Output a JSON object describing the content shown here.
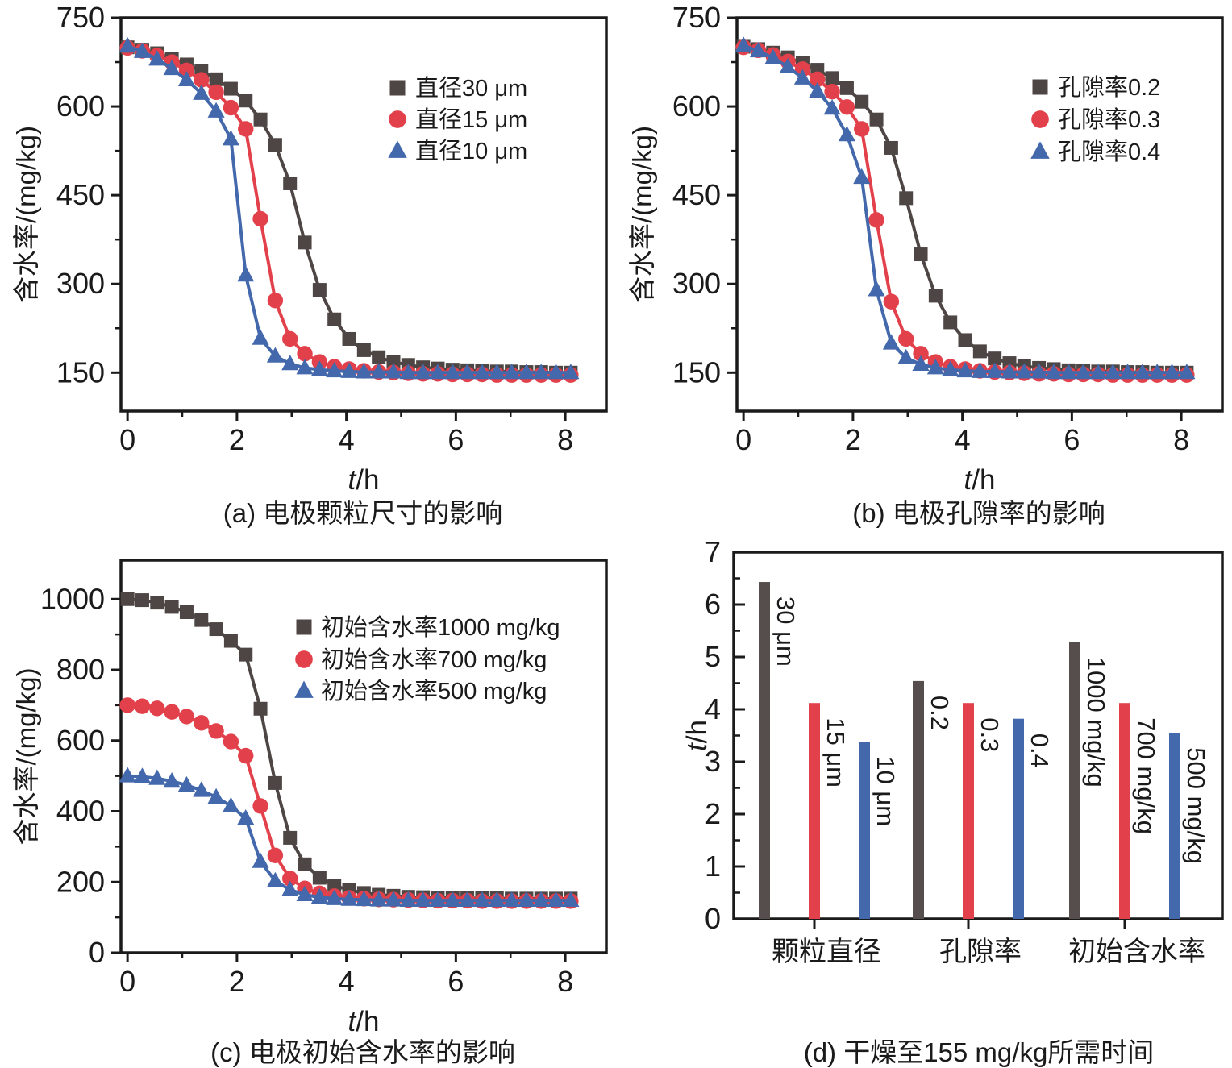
{
  "figure_title": "",
  "colors": {
    "dark": "#4e4644",
    "dark_bar": "#564e4c",
    "red": "#e2414b",
    "blue": "#4368ac",
    "axis": "#1a1a1a"
  },
  "chart_data": [
    {
      "id": "a",
      "type": "line",
      "caption": "(a) 电极颗粒尺寸的影响",
      "xlabel": {
        "italic": "t",
        "rest": "/h"
      },
      "ylabel": "含水率/(mg/kg)",
      "xlim": [
        -0.12,
        8.75
      ],
      "ylim": [
        85,
        750
      ],
      "xticks": [
        0,
        2,
        4,
        6,
        8
      ],
      "xminor": [
        1,
        3,
        5,
        7
      ],
      "yticks": [
        150,
        300,
        450,
        600,
        750
      ],
      "yminor": [
        225,
        375,
        525,
        675
      ],
      "x": [
        0,
        0.27,
        0.54,
        0.81,
        1.08,
        1.35,
        1.62,
        1.89,
        2.16,
        2.43,
        2.7,
        2.97,
        3.24,
        3.51,
        3.78,
        4.05,
        4.32,
        4.59,
        4.86,
        5.13,
        5.4,
        5.67,
        5.94,
        6.21,
        6.48,
        6.75,
        7.02,
        7.29,
        7.56,
        7.83,
        8.1
      ],
      "series": [
        {
          "label": "直径30 μm",
          "marker": "square",
          "color": "#4e4644",
          "y": [
            700,
            696,
            690,
            681,
            671,
            660,
            646,
            630,
            610,
            578,
            535,
            470,
            370,
            290,
            240,
            207,
            188,
            176,
            168,
            163,
            159,
            157,
            155,
            154,
            153,
            152,
            152,
            151,
            151,
            150,
            150
          ]
        },
        {
          "label": "直径15 μm",
          "marker": "circle",
          "color": "#e2414b",
          "y": [
            699,
            694,
            686,
            675,
            661,
            645,
            624,
            598,
            562,
            410,
            272,
            207,
            182,
            168,
            160,
            156,
            153,
            151,
            150,
            149,
            148,
            148,
            147,
            147,
            147,
            146,
            146,
            146,
            146,
            146,
            146
          ]
        },
        {
          "label": "直径10 μm",
          "marker": "triangle",
          "color": "#4368ac",
          "y": [
            702,
            693,
            680,
            664,
            645,
            622,
            592,
            545,
            315,
            208,
            178,
            165,
            158,
            155,
            153,
            152,
            151,
            151,
            151,
            150,
            150,
            150,
            150,
            150,
            150,
            150,
            150,
            150,
            150,
            150,
            150
          ]
        }
      ]
    },
    {
      "id": "b",
      "type": "line",
      "caption": "(b) 电极孔隙率的影响",
      "xlabel": {
        "italic": "t",
        "rest": "/h"
      },
      "ylabel": "含水率/(mg/kg)",
      "xlim": [
        -0.12,
        8.75
      ],
      "ylim": [
        85,
        750
      ],
      "xticks": [
        0,
        2,
        4,
        6,
        8
      ],
      "xminor": [
        1,
        3,
        5,
        7
      ],
      "yticks": [
        150,
        300,
        450,
        600,
        750
      ],
      "yminor": [
        225,
        375,
        525,
        675
      ],
      "x": [
        0,
        0.27,
        0.54,
        0.81,
        1.08,
        1.35,
        1.62,
        1.89,
        2.16,
        2.43,
        2.7,
        2.97,
        3.24,
        3.51,
        3.78,
        4.05,
        4.32,
        4.59,
        4.86,
        5.13,
        5.4,
        5.67,
        5.94,
        6.21,
        6.48,
        6.75,
        7.02,
        7.29,
        7.56,
        7.83,
        8.1
      ],
      "series": [
        {
          "label": "孔隙率0.2",
          "marker": "square",
          "color": "#4e4644",
          "y": [
            701,
            697,
            691,
            683,
            673,
            662,
            648,
            631,
            608,
            578,
            530,
            445,
            350,
            280,
            235,
            205,
            186,
            174,
            166,
            161,
            158,
            156,
            154,
            153,
            152,
            152,
            151,
            151,
            150,
            150,
            150
          ]
        },
        {
          "label": "孔隙率0.3",
          "marker": "circle",
          "color": "#e2414b",
          "y": [
            700,
            695,
            687,
            676,
            663,
            646,
            625,
            599,
            562,
            408,
            270,
            207,
            182,
            168,
            160,
            156,
            153,
            151,
            150,
            149,
            148,
            148,
            147,
            147,
            147,
            146,
            146,
            146,
            146,
            146,
            146
          ]
        },
        {
          "label": "孔隙率0.4",
          "marker": "triangle",
          "color": "#4368ac",
          "y": [
            703,
            694,
            682,
            667,
            648,
            626,
            597,
            552,
            480,
            290,
            200,
            175,
            164,
            158,
            155,
            153,
            152,
            152,
            151,
            151,
            151,
            150,
            150,
            150,
            150,
            150,
            150,
            150,
            150,
            150,
            150
          ]
        }
      ]
    },
    {
      "id": "c",
      "type": "line",
      "caption": "(c) 电极初始含水率的影响",
      "xlabel": {
        "italic": "t",
        "rest": "/h"
      },
      "ylabel": "含水率/(mg/kg)",
      "xlim": [
        -0.12,
        8.75
      ],
      "ylim": [
        0,
        1110
      ],
      "xticks": [
        0,
        2,
        4,
        6,
        8
      ],
      "xminor": [
        1,
        3,
        5,
        7
      ],
      "yticks": [
        0,
        200,
        400,
        600,
        800,
        1000
      ],
      "yminor": [
        100,
        300,
        500,
        700,
        900
      ],
      "x": [
        0,
        0.27,
        0.54,
        0.81,
        1.08,
        1.35,
        1.62,
        1.89,
        2.16,
        2.43,
        2.7,
        2.97,
        3.24,
        3.51,
        3.78,
        4.05,
        4.32,
        4.59,
        4.86,
        5.13,
        5.4,
        5.67,
        5.94,
        6.21,
        6.48,
        6.75,
        7.02,
        7.29,
        7.56,
        7.83,
        8.1
      ],
      "series": [
        {
          "label": "初始含水率1000 mg/kg",
          "marker": "square",
          "color": "#4e4644",
          "y": [
            1000,
            997,
            990,
            978,
            963,
            941,
            915,
            882,
            843,
            690,
            480,
            325,
            250,
            212,
            190,
            177,
            169,
            164,
            161,
            158,
            157,
            156,
            155,
            154,
            154,
            154,
            153,
            153,
            153,
            153,
            153
          ]
        },
        {
          "label": "初始含水率700 mg/kg",
          "marker": "circle",
          "color": "#e2414b",
          "y": [
            700,
            697,
            691,
            681,
            668,
            650,
            627,
            597,
            557,
            415,
            275,
            210,
            182,
            168,
            160,
            155,
            153,
            151,
            150,
            149,
            148,
            147,
            147,
            147,
            146,
            146,
            146,
            146,
            146,
            146,
            146
          ]
        },
        {
          "label": "初始含水率500 mg/kg",
          "marker": "triangle",
          "color": "#4368ac",
          "y": [
            500,
            498,
            493,
            485,
            474,
            459,
            440,
            415,
            380,
            258,
            203,
            178,
            164,
            157,
            153,
            151,
            150,
            149,
            149,
            148,
            148,
            148,
            148,
            148,
            148,
            148,
            148,
            148,
            148,
            148,
            148
          ]
        }
      ]
    },
    {
      "id": "d",
      "type": "bar",
      "caption": "(d) 干燥至155 mg/kg所需时间",
      "ylabel": {
        "italic": "t",
        "rest": "/h"
      },
      "ylim": [
        0,
        7
      ],
      "yticks": [
        0,
        1,
        2,
        3,
        4,
        5,
        6,
        7
      ],
      "groups": [
        {
          "category": "颗粒直径",
          "bars": [
            {
              "label": "30 μm",
              "value": 6.43,
              "color": "#564e4c"
            },
            {
              "label": "15 μm",
              "value": 4.12,
              "color": "#e2414b"
            },
            {
              "label": "10 μm",
              "value": 3.38,
              "color": "#4368ac"
            }
          ]
        },
        {
          "category": "孔隙率",
          "bars": [
            {
              "label": "0.2",
              "value": 4.54,
              "color": "#564e4c"
            },
            {
              "label": "0.3",
              "value": 4.12,
              "color": "#e2414b"
            },
            {
              "label": "0.4",
              "value": 3.82,
              "color": "#4368ac"
            }
          ]
        },
        {
          "category": "初始含水率",
          "bars": [
            {
              "label": "1000 mg/kg",
              "value": 5.28,
              "color": "#564e4c"
            },
            {
              "label": "700 mg/kg",
              "value": 4.12,
              "color": "#e2414b"
            },
            {
              "label": "500 mg/kg",
              "value": 3.55,
              "color": "#4368ac"
            }
          ]
        }
      ]
    }
  ]
}
